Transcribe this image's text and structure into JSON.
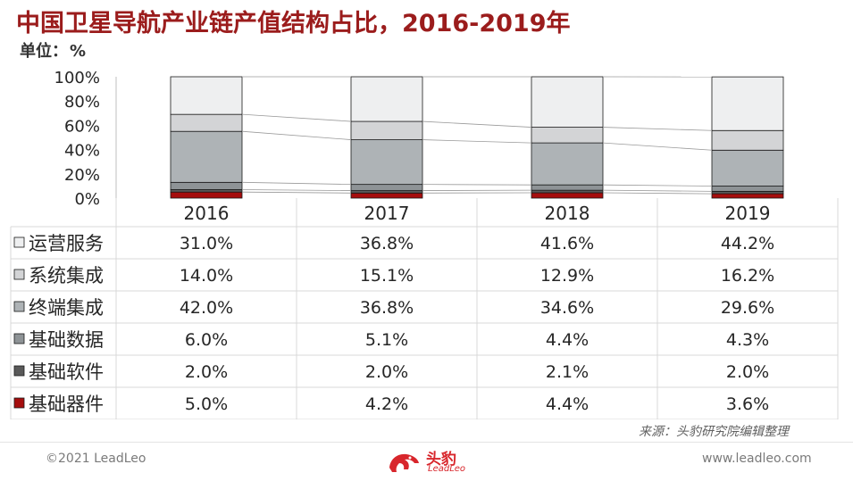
{
  "header": {
    "title": "中国卫星导航产业链产值结构占比，2016-2019年",
    "unit_label": "单位：",
    "unit_value": "%"
  },
  "chart_data": {
    "type": "bar",
    "stacked": true,
    "categories": [
      "2016",
      "2017",
      "2018",
      "2019"
    ],
    "ylim": [
      0,
      100
    ],
    "yticks": [
      "0%",
      "20%",
      "40%",
      "60%",
      "80%",
      "100%"
    ],
    "grid": false,
    "legend": "table-left",
    "series": [
      {
        "name": "基础器件",
        "values": [
          5.0,
          4.2,
          4.4,
          3.6
        ],
        "labels": [
          "5.0%",
          "4.2%",
          "4.4%",
          "3.6%"
        ],
        "color": "#a50d0d"
      },
      {
        "name": "基础软件",
        "values": [
          2.0,
          2.0,
          2.1,
          2.0
        ],
        "labels": [
          "2.0%",
          "2.0%",
          "2.1%",
          "2.0%"
        ],
        "color": "#595959"
      },
      {
        "name": "基础数据",
        "values": [
          6.0,
          5.1,
          4.4,
          4.3
        ],
        "labels": [
          "6.0%",
          "5.1%",
          "4.4%",
          "4.3%"
        ],
        "color": "#8e9396"
      },
      {
        "name": "终端集成",
        "values": [
          42.0,
          36.8,
          34.6,
          29.6
        ],
        "labels": [
          "42.0%",
          "36.8%",
          "34.6%",
          "29.6%"
        ],
        "color": "#aeb3b6"
      },
      {
        "name": "系统集成",
        "values": [
          14.0,
          15.1,
          12.9,
          16.2
        ],
        "labels": [
          "14.0%",
          "15.1%",
          "12.9%",
          "16.2%"
        ],
        "color": "#d3d4d6"
      },
      {
        "name": "运营服务",
        "values": [
          31.0,
          36.8,
          41.6,
          44.2
        ],
        "labels": [
          "31.0%",
          "36.8%",
          "41.6%",
          "44.2%"
        ],
        "color": "#eeeff0"
      }
    ]
  },
  "footer": {
    "source": "来源：头豹研究院编辑整理",
    "copyright": "©2021 LeadLeo",
    "website": "www.leadleo.com",
    "logo_cn": "头豹",
    "logo_en": "LeadLeo"
  }
}
